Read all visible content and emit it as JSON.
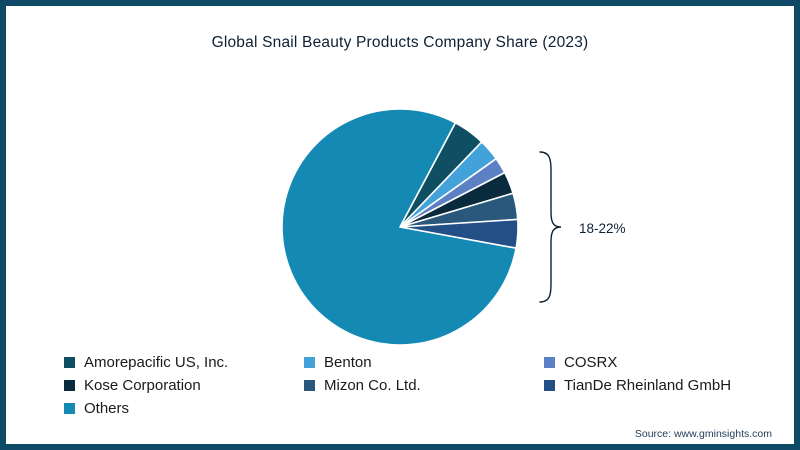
{
  "title": "Global Snail Beauty Products Company Share (2023)",
  "annotation": {
    "bracket_label": "18-22%"
  },
  "source": "Source: www.gminsights.com",
  "colors": {
    "border": "#0e4a66",
    "background": "#ffffff",
    "title_text": "#0d2134",
    "legend_text": "#1a1a1a",
    "source_text": "#23405c"
  },
  "chart_data": {
    "type": "pie",
    "title": "Global Snail Beauty Products Company Share (2023)",
    "start_angle_deg": 28,
    "legend_position": "bottom",
    "slices": [
      {
        "label": "Amorepacific US, Inc.",
        "value": 4.4,
        "color": "#0f4f63"
      },
      {
        "label": "Benton",
        "value": 3.0,
        "color": "#44a2da"
      },
      {
        "label": "COSRX",
        "value": 2.2,
        "color": "#5b80c4"
      },
      {
        "label": "Kose Corporation",
        "value": 3.0,
        "color": "#0a2b3e"
      },
      {
        "label": "Mizon Co. Ltd.",
        "value": 3.6,
        "color": "#29587c"
      },
      {
        "label": "TianDe Rheinland GmbH",
        "value": 3.9,
        "color": "#234f87"
      },
      {
        "label": "Others",
        "value": 79.9,
        "color": "#1389b4"
      }
    ],
    "annotation": "Bracket spanning the non-Others company slices labeled 18-22%"
  }
}
